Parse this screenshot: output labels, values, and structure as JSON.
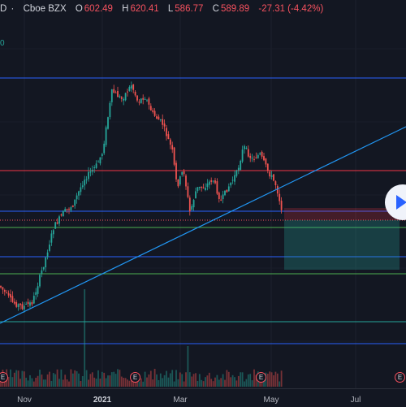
{
  "header": {
    "symbol_tail": "D",
    "exchange": "Cboe BZX",
    "open_label": "O",
    "open_value": "602.49",
    "high_label": "H",
    "high_value": "620.41",
    "low_label": "L",
    "low_value": "586.77",
    "close_label": "C",
    "close_value": "589.89",
    "change": "-27.31 (-4.42%)",
    "volume_tail": "0"
  },
  "x_axis": {
    "labels": [
      "Nov",
      "2021",
      "Mar",
      "May",
      "Jul"
    ]
  },
  "events": [
    {
      "label": "E"
    },
    {
      "label": "E"
    },
    {
      "label": "E"
    },
    {
      "label": "E"
    },
    {
      "label": "E"
    }
  ],
  "colors": {
    "background": "#131722",
    "up": "#26a69a",
    "down": "#ef5350",
    "hline_blue": "#2962ff",
    "hline_red": "#f23645",
    "hline_green": "#4caf50",
    "trendline": "#2196f3"
  },
  "play_button": {
    "icon": "play-icon"
  }
}
